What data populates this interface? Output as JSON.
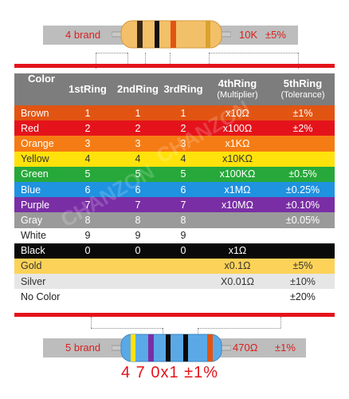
{
  "top_label": {
    "left": "4 brand",
    "right_value": "10K",
    "right_tol": "±5%"
  },
  "bottom_label": {
    "left": "5 brand",
    "right_value": "470Ω",
    "right_tol": "±1%"
  },
  "bottom_digits": "4 7 0x1 ±1%",
  "headers": {
    "color": "Color",
    "r1": "1stRing",
    "r2": "2ndRing",
    "r3": "3rdRing",
    "mult": "4thRing",
    "mult_sub": "(Multiplier)",
    "tol": "5thRing",
    "tol_sub": "(Tolerance)"
  },
  "rows": [
    {
      "name": "Brown",
      "bg": "#e25412",
      "fg": "#ffffff",
      "r1": "1",
      "r2": "1",
      "r3": "1",
      "mult": "x10Ω",
      "tol": "±1%"
    },
    {
      "name": "Red",
      "bg": "#e4131b",
      "fg": "#ffffff",
      "r1": "2",
      "r2": "2",
      "r3": "2",
      "mult": "x100Ω",
      "tol": "±2%"
    },
    {
      "name": "Orange",
      "bg": "#f57c14",
      "fg": "#ffffff",
      "r1": "3",
      "r2": "3",
      "r3": "3",
      "mult": "x1KΩ",
      "tol": ""
    },
    {
      "name": "Yellow",
      "bg": "#ffe20b",
      "fg": "#333333",
      "r1": "4",
      "r2": "4",
      "r3": "4",
      "mult": "x10KΩ",
      "tol": ""
    },
    {
      "name": "Green",
      "bg": "#27a83a",
      "fg": "#ffffff",
      "r1": "5",
      "r2": "5",
      "r3": "5",
      "mult": "x100KΩ",
      "tol": "±0.5%"
    },
    {
      "name": "Blue",
      "bg": "#1f92e0",
      "fg": "#ffffff",
      "r1": "6",
      "r2": "6",
      "r3": "6",
      "mult": "x1MΩ",
      "tol": "±0.25%"
    },
    {
      "name": "Purple",
      "bg": "#7a2ea5",
      "fg": "#ffffff",
      "r1": "7",
      "r2": "7",
      "r3": "7",
      "mult": "x10MΩ",
      "tol": "±0.10%"
    },
    {
      "name": "Gray",
      "bg": "#9a9a9a",
      "fg": "#ffffff",
      "r1": "8",
      "r2": "8",
      "r3": "8",
      "mult": "",
      "tol": "±0.05%"
    },
    {
      "name": "White",
      "bg": "#ffffff",
      "fg": "#222222",
      "r1": "9",
      "r2": "9",
      "r3": "9",
      "mult": "",
      "tol": ""
    },
    {
      "name": "Black",
      "bg": "#0a0a0a",
      "fg": "#ffffff",
      "r1": "0",
      "r2": "0",
      "r3": "0",
      "mult": "x1Ω",
      "tol": ""
    },
    {
      "name": "Gold",
      "bg": "#fcd258",
      "fg": "#333333",
      "r1": "",
      "r2": "",
      "r3": "",
      "mult": "x0.1Ω",
      "tol": "±5%"
    },
    {
      "name": "Silver",
      "bg": "#e6e6e6",
      "fg": "#333333",
      "r1": "",
      "r2": "",
      "r3": "",
      "mult": "X0.01Ω",
      "tol": "±10%"
    },
    {
      "name": "No Color",
      "bg": "#ffffff",
      "fg": "#222222",
      "r1": "",
      "r2": "",
      "r3": "",
      "mult": "",
      "tol": "±20%"
    }
  ],
  "colors": {
    "accent_red": "#e4131b",
    "strip_gray": "#bdbdbd",
    "header_gray": "#7d7d7d"
  }
}
